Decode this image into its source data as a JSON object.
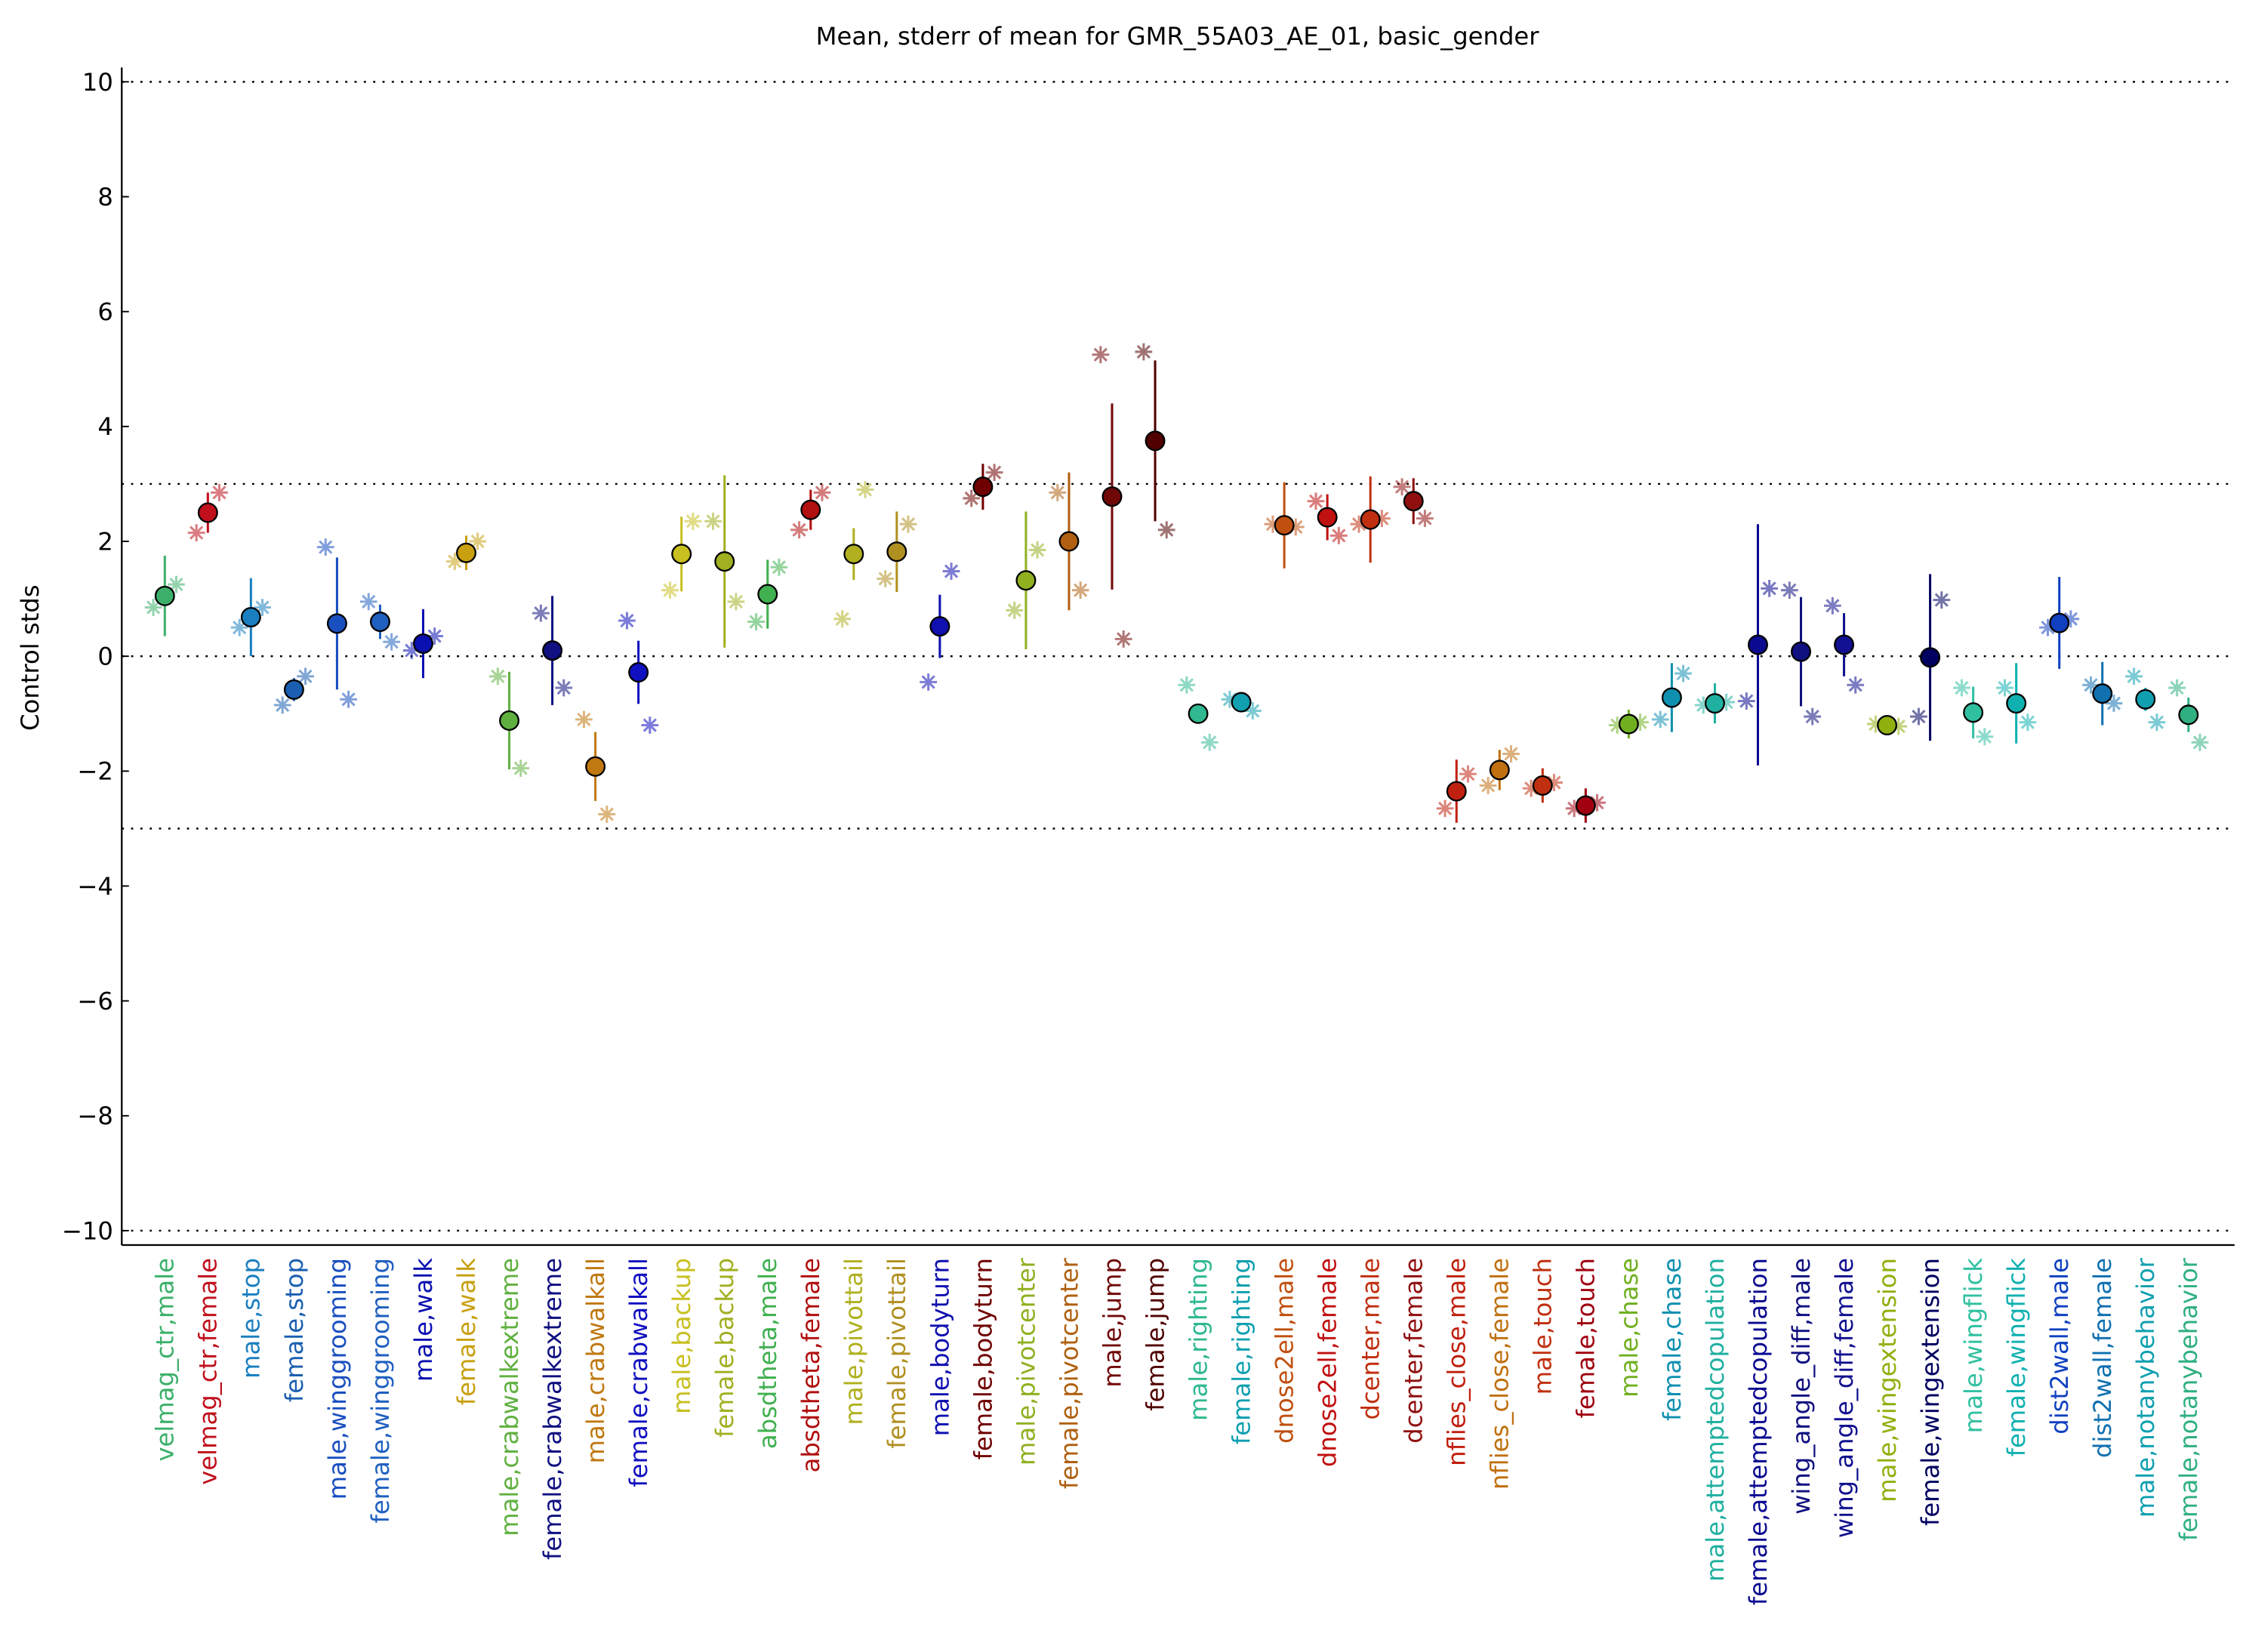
{
  "chart_data": {
    "type": "errorbar",
    "title": "Mean, stderr of mean for GMR_55A03_AE_01, basic_gender",
    "y_label": "Control stds",
    "ylim": [
      -10.25,
      10.25
    ],
    "yticks": [
      {
        "value": -10,
        "label": "−10"
      },
      {
        "value": -8,
        "label": "−8"
      },
      {
        "value": -6,
        "label": "−6"
      },
      {
        "value": -4,
        "label": "−4"
      },
      {
        "value": -2,
        "label": "−2"
      },
      0,
      2,
      4,
      6,
      8,
      10
    ],
    "reference_lines": [
      -10,
      -3,
      0,
      3,
      10
    ],
    "categories": [
      "velmag_ctr,male",
      "velmag_ctr,female",
      "male,stop",
      "female,stop",
      "male,winggrooming",
      "female,winggrooming",
      "male,walk",
      "female,walk",
      "male,crabwalkextreme",
      "female,crabwalkextreme",
      "male,crabwalkall",
      "female,crabwalkall",
      "male,backup",
      "female,backup",
      "absdtheta,male",
      "absdtheta,female",
      "male,pivottail",
      "female,pivottail",
      "male,bodyturn",
      "female,bodyturn",
      "male,pivotcenter",
      "female,pivotcenter",
      "male,jump",
      "female,jump",
      "male,righting",
      "female,righting",
      "dnose2ell,male",
      "dnose2ell,female",
      "dcenter,male",
      "dcenter,female",
      "nflies_close,male",
      "nflies_close,female",
      "male,touch",
      "female,touch",
      "male,chase",
      "female,chase",
      "male,attemptedcopulation",
      "female,attemptedcopulation",
      "wing_angle_diff,male",
      "wing_angle_diff,female",
      "male,wingextension",
      "female,wingextension",
      "male,wingflick",
      "female,wingflick",
      "dist2wall,male",
      "dist2wall,female",
      "male,notanybehavior",
      "female,notanybehavior"
    ],
    "values": [
      1.05,
      2.5,
      0.68,
      -0.58,
      0.57,
      0.6,
      0.22,
      1.8,
      -1.12,
      0.1,
      -1.92,
      -0.28,
      1.78,
      1.65,
      1.08,
      2.55,
      1.78,
      1.82,
      0.52,
      2.95,
      1.32,
      2.0,
      2.78,
      3.75,
      -1.0,
      -0.8,
      2.28,
      2.42,
      2.38,
      2.7,
      -2.35,
      -1.98,
      -2.25,
      -2.6,
      -1.18,
      -0.72,
      -0.82,
      0.2,
      0.08,
      0.2,
      -1.2,
      -0.02,
      -0.98,
      -0.82,
      0.58,
      -0.65,
      -0.75,
      -1.02
    ],
    "errors": [
      0.7,
      0.35,
      0.68,
      0.2,
      1.15,
      0.3,
      0.6,
      0.3,
      0.85,
      0.95,
      0.6,
      0.55,
      0.65,
      1.5,
      0.6,
      0.35,
      0.45,
      0.7,
      0.55,
      0.4,
      1.2,
      1.2,
      1.62,
      1.4,
      0.1,
      0.1,
      0.75,
      0.4,
      0.75,
      0.4,
      0.55,
      0.35,
      0.3,
      0.3,
      0.25,
      0.6,
      0.35,
      2.1,
      0.95,
      0.55,
      0.15,
      1.45,
      0.45,
      0.7,
      0.8,
      0.55,
      0.2,
      0.3
    ],
    "left_star_values": [
      0.85,
      2.15,
      0.5,
      -0.85,
      1.9,
      0.95,
      0.1,
      1.65,
      -0.35,
      0.75,
      -1.1,
      0.62,
      1.15,
      2.35,
      0.6,
      2.2,
      0.65,
      1.35,
      -0.45,
      2.75,
      0.8,
      2.85,
      5.25,
      5.3,
      -0.5,
      -0.75,
      2.3,
      2.7,
      2.3,
      2.95,
      -2.65,
      -2.25,
      -2.3,
      -2.65,
      -1.2,
      -1.1,
      -0.85,
      -0.78,
      1.15,
      0.88,
      -1.18,
      -1.05,
      -0.55,
      -0.55,
      0.5,
      -0.5,
      -0.35,
      -0.55
    ],
    "right_star_values": [
      1.25,
      2.85,
      0.85,
      -0.35,
      -0.75,
      0.25,
      0.35,
      2.0,
      -1.95,
      -0.55,
      -2.75,
      -1.2,
      2.35,
      0.95,
      1.55,
      2.85,
      2.9,
      2.3,
      1.48,
      3.2,
      1.85,
      1.15,
      0.3,
      2.2,
      -1.5,
      -0.95,
      2.25,
      2.1,
      2.4,
      2.4,
      -2.05,
      -1.7,
      -2.2,
      -2.55,
      -1.15,
      -0.3,
      -0.8,
      1.18,
      -1.05,
      -0.5,
      -1.22,
      0.98,
      -1.4,
      -1.15,
      0.65,
      -0.82,
      -1.15,
      -1.5
    ],
    "colors": [
      "#3cb06a",
      "#c0101c",
      "#1a7fc0",
      "#1a5fb0",
      "#1a4fbf",
      "#2060c0",
      "#0a10b0",
      "#c8a010",
      "#60b040",
      "#101080",
      "#c07810",
      "#1010c0",
      "#c8c020",
      "#a0b020",
      "#40b050",
      "#b01010",
      "#b0b020",
      "#b09020",
      "#1010b0",
      "#700000",
      "#90b020",
      "#b06010",
      "#700808",
      "#500000",
      "#30b890",
      "#10a0b0",
      "#c05010",
      "#c01010",
      "#c03010",
      "#901010",
      "#c02010",
      "#c07010",
      "#c03010",
      "#a00010",
      "#70b020",
      "#1090b0",
      "#20b0a0",
      "#0a0a90",
      "#101080",
      "#101090",
      "#90b010",
      "#000060",
      "#30c0a0",
      "#10b0b0",
      "#1040c0",
      "#1070b0",
      "#10a0b0",
      "#30b080"
    ]
  }
}
